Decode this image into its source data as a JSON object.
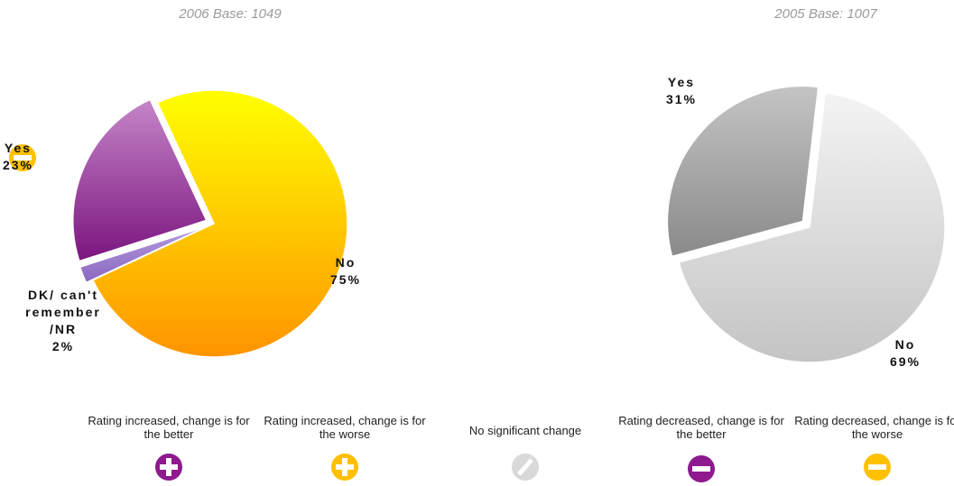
{
  "chart_data": [
    {
      "type": "pie",
      "title": "2006 Base: 1049",
      "categories": [
        "Yes",
        "No",
        "DK/ can't remember /NR"
      ],
      "values": [
        23,
        75,
        2
      ],
      "value_labels": [
        "23%",
        "75%",
        "2%"
      ],
      "colors": [
        [
          "#c585c8",
          "#7b157f"
        ],
        [
          "#ffff00",
          "#ff9400"
        ],
        [
          "#b59ae0",
          "#8a68c0"
        ]
      ]
    },
    {
      "type": "pie",
      "title": "2005 Base: 1007",
      "categories": [
        "Yes",
        "No"
      ],
      "values": [
        31,
        69
      ],
      "value_labels": [
        "31%",
        "69%"
      ],
      "colors": [
        [
          "#c4c4c4",
          "#8a8a8a"
        ],
        [
          "#f4f4f4",
          "#c4c4c4"
        ]
      ]
    }
  ],
  "legend": [
    "Rating increased, change is for the better",
    "Rating increased, change is for the worse",
    "No significant change",
    "Rating decreased, change is for the better",
    "Rating decreased, change is for the worse"
  ]
}
